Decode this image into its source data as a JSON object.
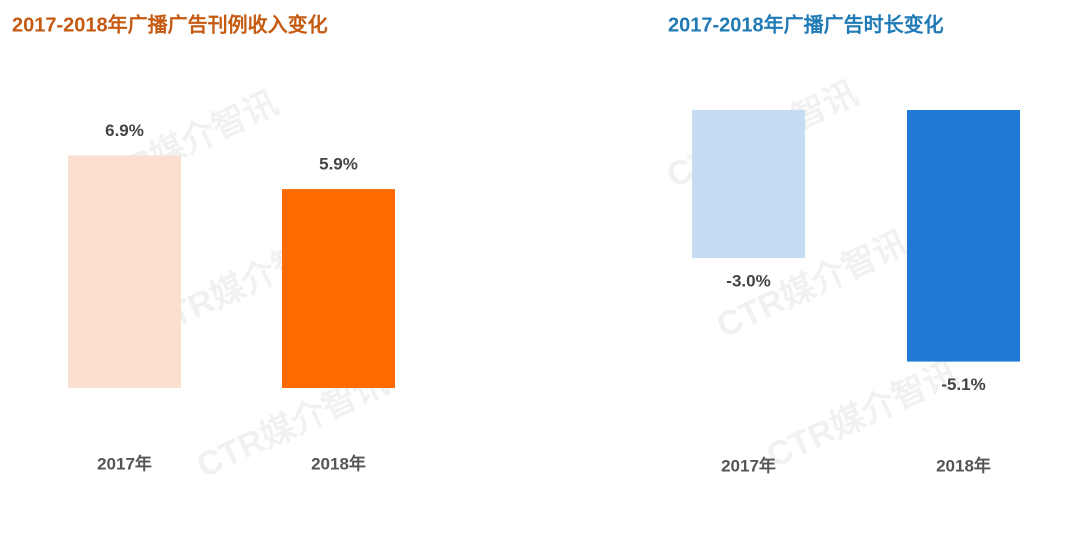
{
  "watermark": "CTR媒介智讯",
  "chart_data": [
    {
      "type": "bar",
      "title": "2017-2018年广播广告刊例收入变化",
      "title_color": "#c55a11",
      "categories": [
        "2017年",
        "2018年"
      ],
      "values": [
        6.9,
        5.9
      ],
      "value_labels": [
        "6.9%",
        "5.9%"
      ],
      "colors": [
        "#fbe0cf",
        "#ff6a00"
      ],
      "ylim": [
        0,
        7
      ]
    },
    {
      "type": "bar",
      "title": "2017-2018年广播广告时长变化",
      "title_color": "#1f7ab5",
      "categories": [
        "2017年",
        "2018年"
      ],
      "values": [
        -3.0,
        -5.1
      ],
      "value_labels": [
        "-3.0%",
        "-5.1%"
      ],
      "colors": [
        "#c5dcf2",
        "#2079d4"
      ],
      "ylim": [
        -6,
        0
      ]
    }
  ]
}
